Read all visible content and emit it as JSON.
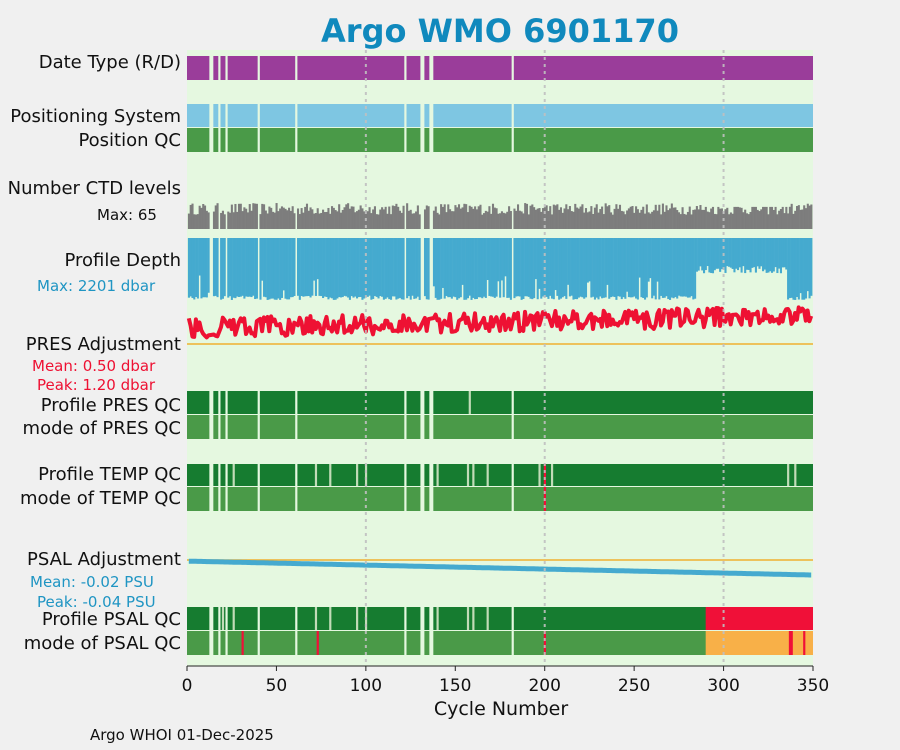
{
  "title": "Argo WMO 6901170",
  "footer": "Argo WHOI 01-Dec-2025",
  "labels": {
    "date_type": "Date Type (R/D)",
    "positioning_system": "Positioning System",
    "position_qc": "Position QC",
    "number_ctd_levels": "Number CTD levels",
    "ctd_max": "Max: 65",
    "profile_depth": "Profile Depth",
    "depth_max": "Max: 2201 dbar",
    "pres_adjustment": "PRES Adjustment",
    "pres_mean": "Mean: 0.50 dbar",
    "pres_peak": "Peak: 1.20 dbar",
    "profile_pres_qc": "Profile PRES QC",
    "mode_pres_qc": "mode of PRES QC",
    "profile_temp_qc": "Profile TEMP QC",
    "mode_temp_qc": "mode of TEMP QC",
    "psal_adjustment": "PSAL Adjustment",
    "psal_mean": "Mean: -0.02 PSU",
    "psal_peak": "Peak: -0.04 PSU",
    "profile_psal_qc": "Profile PSAL QC",
    "mode_psal_qc": "mode of PSAL QC"
  },
  "colors": {
    "background": "#e5f8e0",
    "date_type": "#9a3d9a",
    "positioning": "#7ec6e2",
    "qc_good": "#4a9a48",
    "qc_profile_a": "#167c30",
    "qc_light": "#c2dcb8",
    "ctd": "#7d7d7d",
    "depth": "#45aacf",
    "pres": "#ee1133",
    "zero_line": "#f0b030",
    "psal": "#45aacf",
    "psal_qc_bad": "#f01038",
    "psal_mode_probable": "#f8b048",
    "title": "#1089bd",
    "stat_pres": "#ee1133",
    "stat_psal": "#1f95c3",
    "grid": "#c0c0c0"
  },
  "chart_data": {
    "type": "qc-timeline",
    "xlabel": "Cycle Number",
    "xlim": [
      0,
      350
    ],
    "xticks": [
      0,
      50,
      100,
      150,
      200,
      250,
      300,
      350
    ],
    "gridlines_x": [
      100,
      200,
      300
    ],
    "missing_cycles": [
      13,
      14,
      18,
      22,
      40,
      61,
      122,
      131,
      132,
      136,
      137,
      182
    ],
    "ctd_levels": {
      "max": 65,
      "typical_range": [
        50,
        65
      ]
    },
    "profile_depth": {
      "max_dbar": 2201,
      "shallow_region_cycles": [
        285,
        335
      ]
    },
    "pres_adjustment": {
      "mean_dbar": 0.5,
      "peak_dbar": 1.2
    },
    "psal_adjustment": {
      "mean_psu": -0.02,
      "peak_psu": -0.04,
      "start_psu": -0.003,
      "end_psu": -0.04
    },
    "profile_pres_qc_light_cycles": [
      158
    ],
    "profile_temp_qc_light_cycles": [
      26,
      72,
      80,
      95,
      100,
      140,
      157,
      160,
      168,
      197,
      204,
      336,
      340
    ],
    "temp_qc_red_cycle": [
      200
    ],
    "profile_psal_qc_light_cycles": [
      20,
      26,
      72,
      80,
      95,
      100,
      140,
      157,
      160,
      168
    ],
    "psal_qc_bad_start_cycle": 290,
    "psal_mode_red_cycles": [
      31,
      73,
      200,
      337,
      338,
      345
    ],
    "psal_mode_probable_start_cycle": 290
  }
}
